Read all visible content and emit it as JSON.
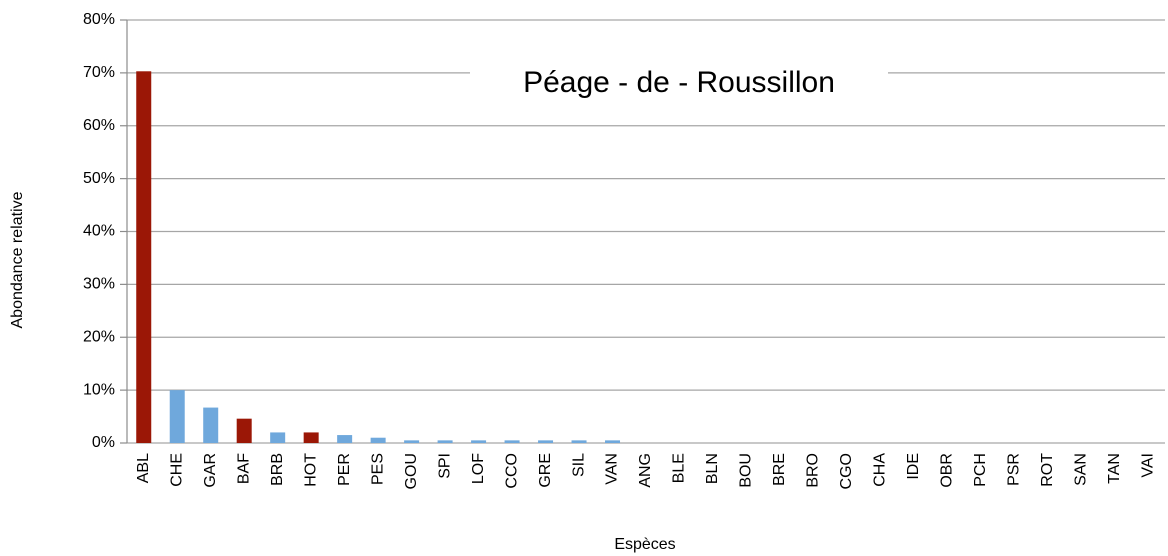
{
  "chart_data": {
    "type": "bar",
    "title": "Péage - de - Roussillon",
    "x_label": "Espèces",
    "y_label": "Abondance relative",
    "categories": [
      "ABL",
      "CHE",
      "GAR",
      "BAF",
      "BRB",
      "HOT",
      "PER",
      "PES",
      "GOU",
      "SPI",
      "LOF",
      "CCO",
      "GRE",
      "SIL",
      "VAN",
      "ANG",
      "BLE",
      "BLN",
      "BOU",
      "BRE",
      "BRO",
      "CGO",
      "CHA",
      "IDE",
      "OBR",
      "PCH",
      "PSR",
      "ROT",
      "SAN",
      "TAN",
      "VAI"
    ],
    "values": [
      70.3,
      10,
      6.7,
      4.6,
      2,
      2,
      1.5,
      1,
      0.5,
      0.5,
      0.5,
      0.5,
      0.5,
      0.5,
      0.5,
      0,
      0,
      0,
      0,
      0,
      0,
      0,
      0,
      0,
      0,
      0,
      0,
      0,
      0,
      0,
      0
    ],
    "colors": [
      "#9b1706",
      "#6fa8dc",
      "#6fa8dc",
      "#9b1706",
      "#6fa8dc",
      "#9b1706",
      "#6fa8dc",
      "#6fa8dc",
      "#6fa8dc",
      "#6fa8dc",
      "#6fa8dc",
      "#6fa8dc",
      "#6fa8dc",
      "#6fa8dc",
      "#6fa8dc",
      "#6fa8dc",
      "#6fa8dc",
      "#6fa8dc",
      "#6fa8dc",
      "#6fa8dc",
      "#6fa8dc",
      "#6fa8dc",
      "#6fa8dc",
      "#6fa8dc",
      "#6fa8dc",
      "#6fa8dc",
      "#6fa8dc",
      "#6fa8dc",
      "#6fa8dc",
      "#6fa8dc",
      "#6fa8dc"
    ],
    "ylim": [
      0,
      80
    ],
    "yticks": [
      {
        "value": 0,
        "label": "0%"
      },
      {
        "value": 10,
        "label": "10%"
      },
      {
        "value": 20,
        "label": "20%"
      },
      {
        "value": 30,
        "label": "30%"
      },
      {
        "value": 40,
        "label": "40%"
      },
      {
        "value": 50,
        "label": "50%"
      },
      {
        "value": 60,
        "label": "60%"
      },
      {
        "value": 70,
        "label": "70%"
      },
      {
        "value": 80,
        "label": "80%"
      }
    ],
    "grid": true
  }
}
